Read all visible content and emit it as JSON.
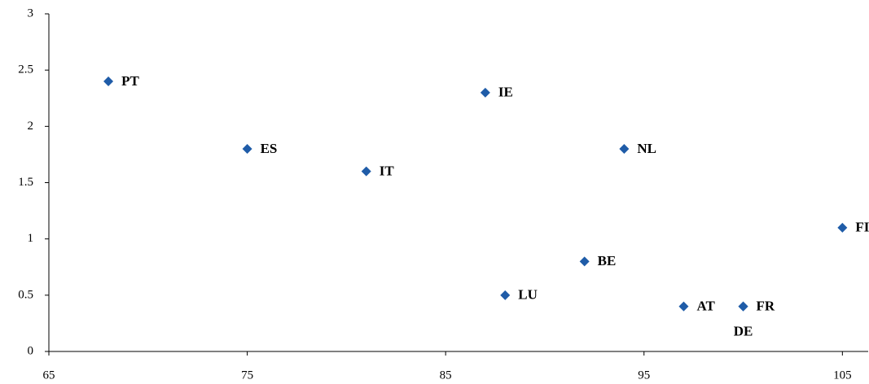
{
  "chart_data": {
    "type": "scatter",
    "labels": [
      "PT",
      "ES",
      "IT",
      "IE",
      "LU",
      "BE",
      "NL",
      "AT",
      "FR",
      "DE",
      "FI"
    ],
    "x": [
      68,
      75,
      81,
      87,
      88,
      92,
      94,
      97,
      100,
      100,
      105
    ],
    "values": [
      2.4,
      1.8,
      1.6,
      2.3,
      0.5,
      0.8,
      1.8,
      0.4,
      0.4,
      0.4,
      1.1
    ],
    "color": "#1f5ca8",
    "xlim": [
      65,
      106.3
    ],
    "xticks": [
      65,
      75,
      85,
      95,
      105
    ],
    "ylim": [
      0,
      3
    ],
    "yticks": [
      0,
      0.5,
      1,
      1.5,
      2,
      2.5,
      3
    ],
    "grid": false
  }
}
